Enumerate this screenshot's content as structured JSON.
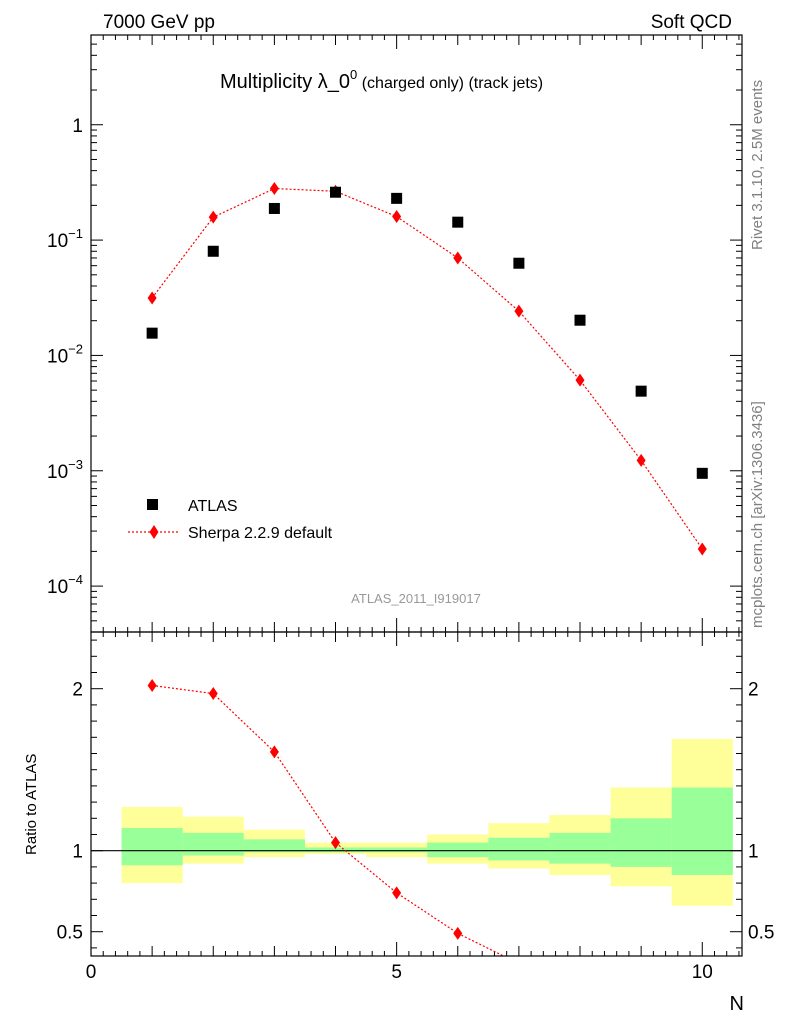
{
  "header": {
    "left": "7000 GeV pp",
    "right": "Soft QCD"
  },
  "side_text": {
    "top": "Rivet 3.1.10,  2.5M events",
    "bottom": "mcplots.cern.ch [arXiv:1306.3436]"
  },
  "watermark": "ATLAS_2011_I919017",
  "chart_data": [
    {
      "type": "scatter",
      "panel": "main",
      "title": "Multiplicity λ_0",
      "title_sup": "0",
      "title_suffix": " (charged only) (track jets)",
      "xlim": [
        0,
        10.65
      ],
      "ylim": [
        4e-05,
        6
      ],
      "y_scale": "log",
      "y_ticks": [
        {
          "v": 1,
          "label": "1"
        },
        {
          "v": 0.1,
          "base": "10",
          "exp": "−1"
        },
        {
          "v": 0.01,
          "base": "10",
          "exp": "−2"
        },
        {
          "v": 0.001,
          "base": "10",
          "exp": "−3"
        },
        {
          "v": 0.0001,
          "base": "10",
          "exp": "−4"
        }
      ],
      "legend_position": "bottom-left",
      "series": [
        {
          "name": "ATLAS",
          "marker": "square",
          "color": "#000000",
          "x": [
            1,
            2,
            3,
            4,
            5,
            6,
            7,
            8,
            9,
            10
          ],
          "y": [
            0.0156,
            0.08,
            0.188,
            0.26,
            0.23,
            0.143,
            0.063,
            0.0202,
            0.0049,
            0.00095
          ]
        },
        {
          "name": "Sherpa 2.2.9 default",
          "marker": "diamond",
          "line": "dotted",
          "color": "#ff0000",
          "x": [
            1,
            2,
            3,
            4,
            5,
            6,
            7,
            8,
            9,
            10
          ],
          "y": [
            0.0315,
            0.158,
            0.28,
            0.265,
            0.16,
            0.07,
            0.0242,
            0.0061,
            0.00123,
            0.00021
          ]
        }
      ]
    },
    {
      "type": "line",
      "panel": "ratio",
      "ylabel": "Ratio to ATLAS",
      "xlabel": "N",
      "xlim": [
        0,
        10.65
      ],
      "ylim": [
        0.35,
        2.35
      ],
      "x_ticks": [
        {
          "v": 0,
          "label": "0"
        },
        {
          "v": 5,
          "label": "5"
        },
        {
          "v": 10,
          "label": "10"
        }
      ],
      "y_ticks": [
        {
          "v": 2,
          "label": "2"
        },
        {
          "v": 1,
          "label": "1"
        },
        {
          "v": 0.5,
          "label": "0.5"
        }
      ],
      "bins": [
        0.5,
        1.5,
        2.5,
        3.5,
        4.5,
        5.5,
        6.5,
        7.5,
        8.5,
        9.5,
        10.5
      ],
      "band_outer": {
        "color": "#ffff99",
        "low": [
          0.8,
          0.92,
          0.96,
          0.98,
          0.96,
          0.92,
          0.89,
          0.85,
          0.78,
          0.66
        ],
        "high": [
          1.27,
          1.21,
          1.13,
          1.05,
          1.05,
          1.1,
          1.17,
          1.22,
          1.39,
          1.69
        ]
      },
      "band_inner": {
        "color": "#99ff99",
        "low": [
          0.91,
          0.97,
          0.99,
          0.99,
          0.99,
          0.96,
          0.94,
          0.92,
          0.9,
          0.85
        ],
        "high": [
          1.14,
          1.11,
          1.07,
          1.02,
          1.02,
          1.05,
          1.08,
          1.11,
          1.2,
          1.39
        ]
      },
      "series": [
        {
          "name": "Sherpa 2.2.9 default",
          "marker": "diamond",
          "line": "dotted",
          "color": "#ff0000",
          "x": [
            1,
            2,
            3,
            4,
            5,
            6,
            6.75
          ],
          "y": [
            2.02,
            1.97,
            1.61,
            1.05,
            0.74,
            0.49,
            0.35
          ],
          "marker_count": 6
        }
      ]
    }
  ]
}
